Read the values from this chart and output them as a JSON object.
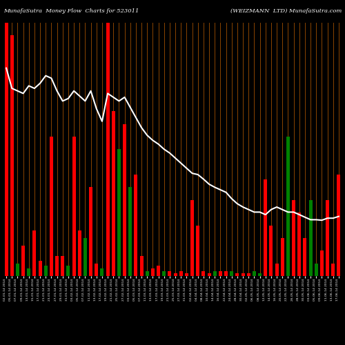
{
  "title_left": "MunafaSutra  Money Flow  Charts for 523011",
  "title_right": "(WEIZMANN  LTD) MunafaSutra.com",
  "background_color": "#000000",
  "bar_colors": [
    "red",
    "red",
    "green",
    "red",
    "green",
    "red",
    "red",
    "green",
    "red",
    "red",
    "red",
    "green",
    "red",
    "red",
    "green",
    "red",
    "red",
    "green",
    "red",
    "red",
    "green",
    "red",
    "green",
    "red",
    "red",
    "green",
    "red",
    "red",
    "green",
    "red",
    "red",
    "red",
    "red",
    "red",
    "red",
    "red",
    "red",
    "green",
    "red",
    "red",
    "green",
    "red",
    "red",
    "red",
    "green",
    "green",
    "red",
    "red",
    "red",
    "red",
    "green",
    "red",
    "red",
    "red",
    "green",
    "green",
    "red",
    "red",
    "red",
    "red"
  ],
  "bar_heights": [
    1000,
    950,
    50,
    120,
    30,
    180,
    60,
    40,
    550,
    80,
    80,
    40,
    550,
    180,
    150,
    350,
    50,
    30,
    1000,
    650,
    500,
    600,
    350,
    400,
    80,
    20,
    30,
    40,
    20,
    20,
    10,
    20,
    10,
    300,
    200,
    20,
    10,
    20,
    20,
    20,
    20,
    10,
    10,
    10,
    20,
    10,
    380,
    200,
    50,
    150,
    550,
    300,
    250,
    150,
    300,
    50,
    100,
    300,
    50,
    400
  ],
  "line_values": [
    820,
    740,
    730,
    720,
    750,
    740,
    760,
    790,
    780,
    730,
    690,
    700,
    730,
    710,
    690,
    730,
    660,
    610,
    720,
    705,
    690,
    705,
    665,
    625,
    585,
    555,
    535,
    520,
    500,
    485,
    465,
    445,
    425,
    405,
    400,
    382,
    362,
    350,
    340,
    330,
    305,
    285,
    272,
    262,
    252,
    252,
    242,
    262,
    272,
    262,
    252,
    252,
    242,
    232,
    222,
    222,
    220,
    228,
    228,
    235
  ],
  "grid_color": "#8B4500",
  "bar_width": 0.6,
  "line_color": "#ffffff",
  "line_width": 1.5,
  "n_bars": 60,
  "ymax": 1000,
  "xlabels": [
    "02-01-14 2014",
    "05-01-14 2014",
    "07-01-14 2014",
    "09-01-14 2014",
    "13-01-14 2014",
    "15-01-14 2014",
    "17-01-14 2014",
    "21-01-14 2014",
    "23-01-14 2014",
    "27-01-14 2014",
    "29-01-14 2014",
    "31-01-14 2014",
    "03-02-14 2014",
    "05-02-14 2014",
    "07-02-14 2014",
    "11-02-14 2014",
    "13-02-14 2014",
    "17-02-14 2014",
    "19-02-14 2014",
    "21-02-14 2014",
    "25-02-14 2014",
    "27-02-14 2014",
    "03-03-14 2014",
    "05-03-14 2014",
    "07-03-14 2014",
    "11-03-14 2014",
    "13-03-14 2014",
    "17-03-14 2014",
    "19-03-14 2014",
    "21-03-14 2014",
    "25-03-14 2014",
    "27-03-14 2014",
    "31-03-14 2014",
    "02-04-14 2014",
    "04-04-14 2014",
    "08-04-14 2014",
    "10-04-14 2014",
    "14-04-14 2014",
    "16-04-14 2014",
    "22-04-14 2014",
    "24-04-14 2014",
    "28-04-14 2014",
    "30-04-14 2014",
    "02-05-14 2014",
    "06-05-14 2014",
    "08-05-14 2014",
    "12-05-14 2014",
    "14-05-14 2014",
    "16-05-14 2014",
    "20-05-14 2014",
    "22-05-14 2014",
    "26-05-14 2014",
    "28-05-14 2014",
    "30-05-14 2014",
    "03-06-14 2014",
    "05-06-14 2014",
    "09-06-14 2014",
    "11-06-14 2014",
    "13-06-14 2014",
    "17-06-14 2014"
  ]
}
